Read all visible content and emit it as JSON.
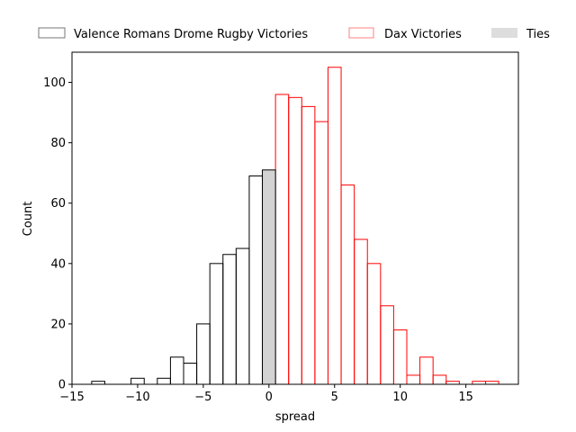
{
  "chart_data": {
    "type": "histogram",
    "xlabel": "spread",
    "ylabel": "Count",
    "xlim": [
      -15,
      19
    ],
    "ylim": [
      0,
      110
    ],
    "x_ticks": [
      -15,
      -10,
      -5,
      0,
      5,
      10,
      15
    ],
    "y_ticks": [
      0,
      20,
      40,
      60,
      80,
      100
    ],
    "grid": false,
    "legend_position": "top",
    "bin_width": 1,
    "series": [
      {
        "name": "Valence Romans Drome Rugby Victories",
        "edge_color": "#000000",
        "fill_color": "none",
        "bins": [
          {
            "x0": -13.5,
            "x1": -12.5,
            "count": 1
          },
          {
            "x0": -12.5,
            "x1": -11.5,
            "count": 0
          },
          {
            "x0": -11.5,
            "x1": -10.5,
            "count": 0
          },
          {
            "x0": -10.5,
            "x1": -9.5,
            "count": 2
          },
          {
            "x0": -9.5,
            "x1": -8.5,
            "count": 0
          },
          {
            "x0": -8.5,
            "x1": -7.5,
            "count": 2
          },
          {
            "x0": -7.5,
            "x1": -6.5,
            "count": 9
          },
          {
            "x0": -6.5,
            "x1": -5.5,
            "count": 7
          },
          {
            "x0": -5.5,
            "x1": -4.5,
            "count": 20
          },
          {
            "x0": -4.5,
            "x1": -3.5,
            "count": 40
          },
          {
            "x0": -3.5,
            "x1": -2.5,
            "count": 43
          },
          {
            "x0": -2.5,
            "x1": -1.5,
            "count": 45
          },
          {
            "x0": -1.5,
            "x1": -0.5,
            "count": 69
          }
        ]
      },
      {
        "name": "Dax Victories",
        "edge_color": "#ff0000",
        "fill_color": "none",
        "bins": [
          {
            "x0": 0.5,
            "x1": 1.5,
            "count": 96
          },
          {
            "x0": 1.5,
            "x1": 2.5,
            "count": 95
          },
          {
            "x0": 2.5,
            "x1": 3.5,
            "count": 92
          },
          {
            "x0": 3.5,
            "x1": 4.5,
            "count": 87
          },
          {
            "x0": 4.5,
            "x1": 5.5,
            "count": 105
          },
          {
            "x0": 5.5,
            "x1": 6.5,
            "count": 66
          },
          {
            "x0": 6.5,
            "x1": 7.5,
            "count": 48
          },
          {
            "x0": 7.5,
            "x1": 8.5,
            "count": 40
          },
          {
            "x0": 8.5,
            "x1": 9.5,
            "count": 26
          },
          {
            "x0": 9.5,
            "x1": 10.5,
            "count": 18
          },
          {
            "x0": 10.5,
            "x1": 11.5,
            "count": 3
          },
          {
            "x0": 11.5,
            "x1": 12.5,
            "count": 9
          },
          {
            "x0": 12.5,
            "x1": 13.5,
            "count": 3
          },
          {
            "x0": 13.5,
            "x1": 14.5,
            "count": 1
          },
          {
            "x0": 14.5,
            "x1": 15.5,
            "count": 0
          },
          {
            "x0": 15.5,
            "x1": 16.5,
            "count": 1
          },
          {
            "x0": 16.5,
            "x1": 17.5,
            "count": 1
          }
        ]
      },
      {
        "name": "Ties",
        "edge_color": "#000000",
        "fill_color": "#d3d3d3",
        "bins": [
          {
            "x0": -0.5,
            "x1": 0.5,
            "count": 71
          }
        ]
      }
    ]
  }
}
